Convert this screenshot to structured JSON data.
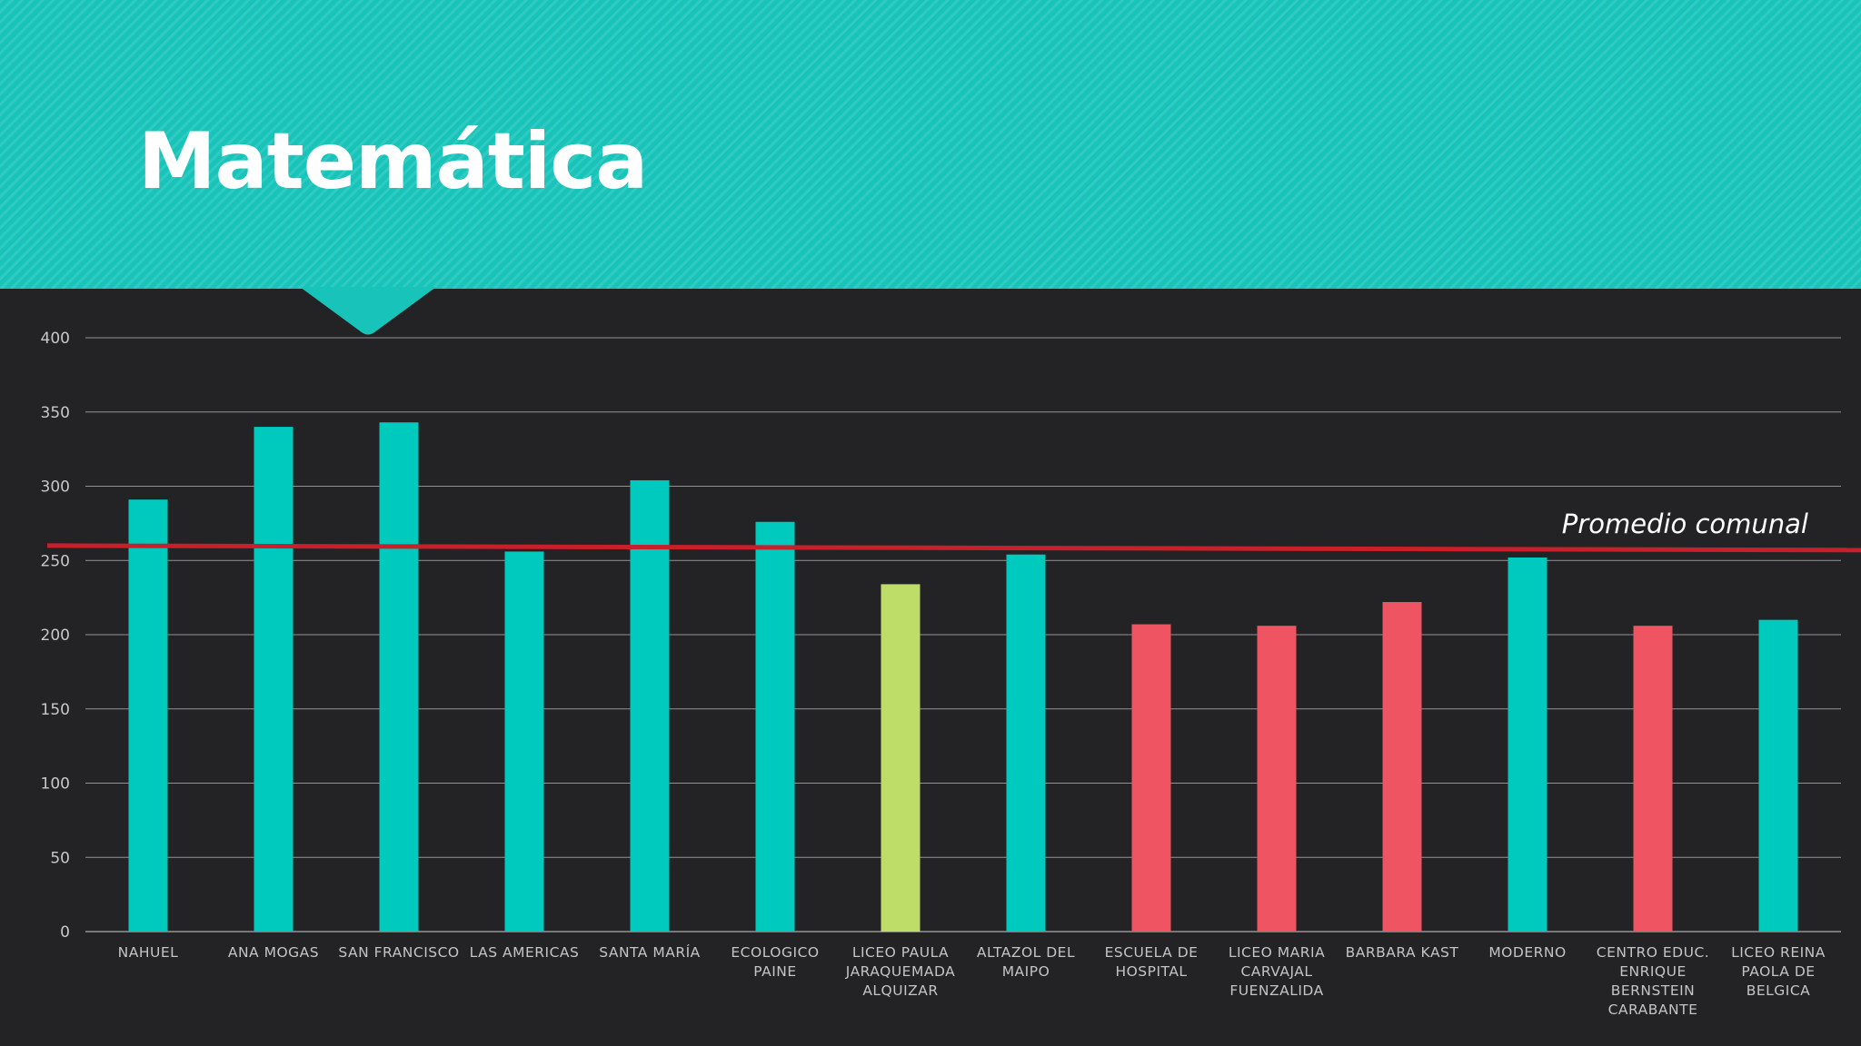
{
  "colors": {
    "banner": "#18c4ba",
    "background": "#232225",
    "above_average": "#00c9bd",
    "near_average": "#bedd68",
    "below_average": "#ef5462",
    "reference_line": "#c8202a",
    "gridline": "#cfcfcf"
  },
  "chart_data": {
    "type": "bar",
    "title": "Matemática",
    "xlabel": "",
    "ylabel": "",
    "ylim": [
      0,
      400
    ],
    "yticks": [
      0,
      50,
      100,
      150,
      200,
      250,
      300,
      350,
      400
    ],
    "grid": true,
    "categories": [
      "NAHUEL",
      "ANA MOGAS",
      "SAN FRANCISCO",
      "LAS AMERICAS",
      "SANTA MARÍA",
      "ECOLOGICO PAINE",
      "LICEO PAULA JARAQUEMADA ALQUIZAR",
      "ALTAZOL DEL MAIPO",
      "ESCUELA DE HOSPITAL",
      "LICEO MARIA CARVAJAL FUENZALIDA",
      "BARBARA KAST",
      "MODERNO",
      "CENTRO EDUC. ENRIQUE BERNSTEIN CARABANTE",
      "LICEO REINA PAOLA DE BELGICA"
    ],
    "category_label_lines": [
      [
        "NAHUEL"
      ],
      [
        "ANA MOGAS"
      ],
      [
        "SAN FRANCISCO"
      ],
      [
        "LAS AMERICAS"
      ],
      [
        "SANTA MARÍA"
      ],
      [
        "ECOLOGICO",
        "PAINE"
      ],
      [
        "LICEO PAULA",
        "JARAQUEMADA",
        "ALQUIZAR"
      ],
      [
        "ALTAZOL DEL",
        "MAIPO"
      ],
      [
        "ESCUELA DE",
        "HOSPITAL"
      ],
      [
        "LICEO MARIA",
        "CARVAJAL",
        "FUENZALIDA"
      ],
      [
        "BARBARA KAST"
      ],
      [
        "MODERNO"
      ],
      [
        "CENTRO EDUC.",
        "ENRIQUE",
        "BERNSTEIN",
        "CARABANTE"
      ],
      [
        "LICEO REINA",
        "PAOLA DE",
        "BELGICA"
      ]
    ],
    "values": [
      291,
      340,
      343,
      256,
      304,
      276,
      234,
      254,
      207,
      206,
      222,
      252,
      206,
      210
    ],
    "bar_colors": [
      "#00c9bd",
      "#00c9bd",
      "#00c9bd",
      "#00c9bd",
      "#00c9bd",
      "#00c9bd",
      "#bedd68",
      "#00c9bd",
      "#ef5462",
      "#ef5462",
      "#ef5462",
      "#00c9bd",
      "#ef5462",
      "#00c9bd"
    ],
    "reference_line": {
      "label": "Promedio comunal",
      "start_value": 260,
      "end_value": 257
    }
  }
}
